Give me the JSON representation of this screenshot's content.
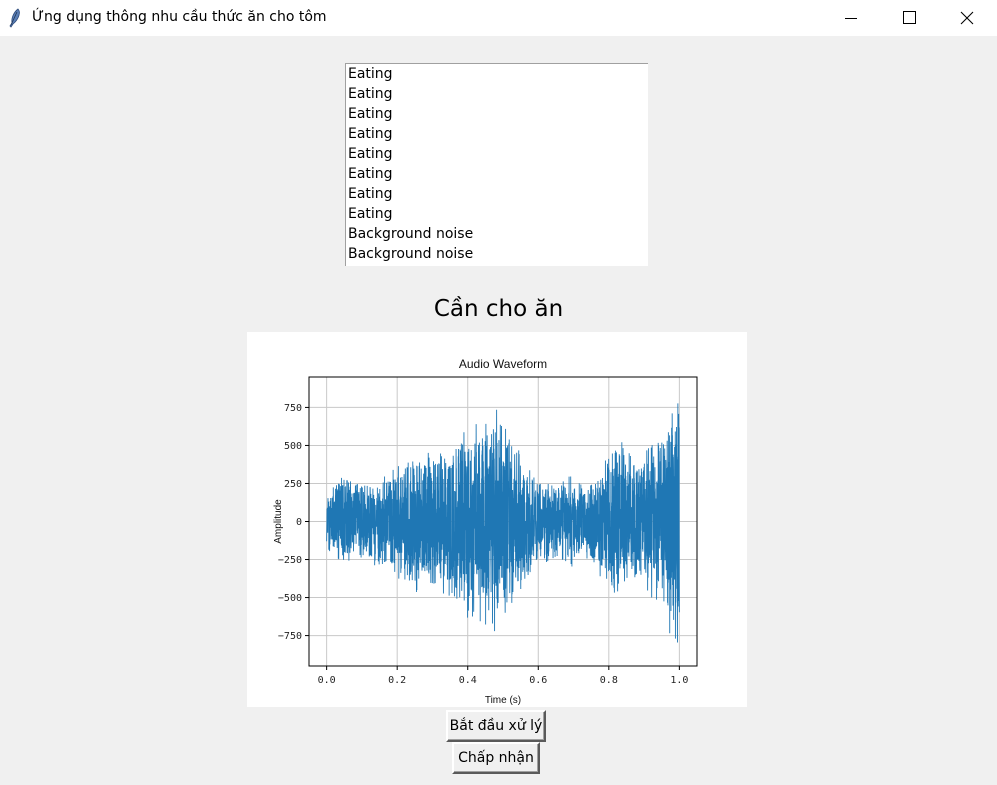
{
  "window": {
    "title": "Ứng dụng thông nhu cầu thức ăn cho tôm",
    "controls": [
      "minimize-icon",
      "maximize-icon",
      "close-icon"
    ]
  },
  "listbox": {
    "items": [
      "Eating",
      "Eating",
      "Eating",
      "Eating",
      "Eating",
      "Eating",
      "Eating",
      "Eating",
      "Background noise",
      "Background noise"
    ]
  },
  "status": {
    "text": "Cần cho ăn"
  },
  "buttons": {
    "start_label": "Bắt đầu xử lý",
    "accept_label": "Chấp nhận"
  },
  "chart_data": {
    "type": "line",
    "title": "Audio Waveform",
    "xlabel": "Time (s)",
    "ylabel": "Amplitude",
    "xlim": [
      -0.05,
      1.05
    ],
    "ylim": [
      -950,
      950
    ],
    "xticks": [
      "0.0",
      "0.2",
      "0.4",
      "0.6",
      "0.8",
      "1.0"
    ],
    "yticks": [
      "750",
      "500",
      "250",
      "0",
      "−250",
      "−500",
      "−750"
    ],
    "grid": true,
    "color": "#1f77b4",
    "envelope": {
      "t": [
        0.0,
        0.03,
        0.08,
        0.13,
        0.18,
        0.22,
        0.27,
        0.32,
        0.37,
        0.4,
        0.43,
        0.46,
        0.5,
        0.53,
        0.56,
        0.6,
        0.64,
        0.68,
        0.72,
        0.76,
        0.79,
        0.82,
        0.85,
        0.88,
        0.91,
        0.94,
        0.96,
        0.98,
        1.0
      ],
      "amp": [
        180,
        300,
        270,
        300,
        330,
        420,
        500,
        450,
        560,
        640,
        700,
        760,
        720,
        540,
        400,
        300,
        250,
        320,
        260,
        300,
        430,
        560,
        500,
        380,
        480,
        560,
        620,
        820,
        820
      ]
    }
  }
}
